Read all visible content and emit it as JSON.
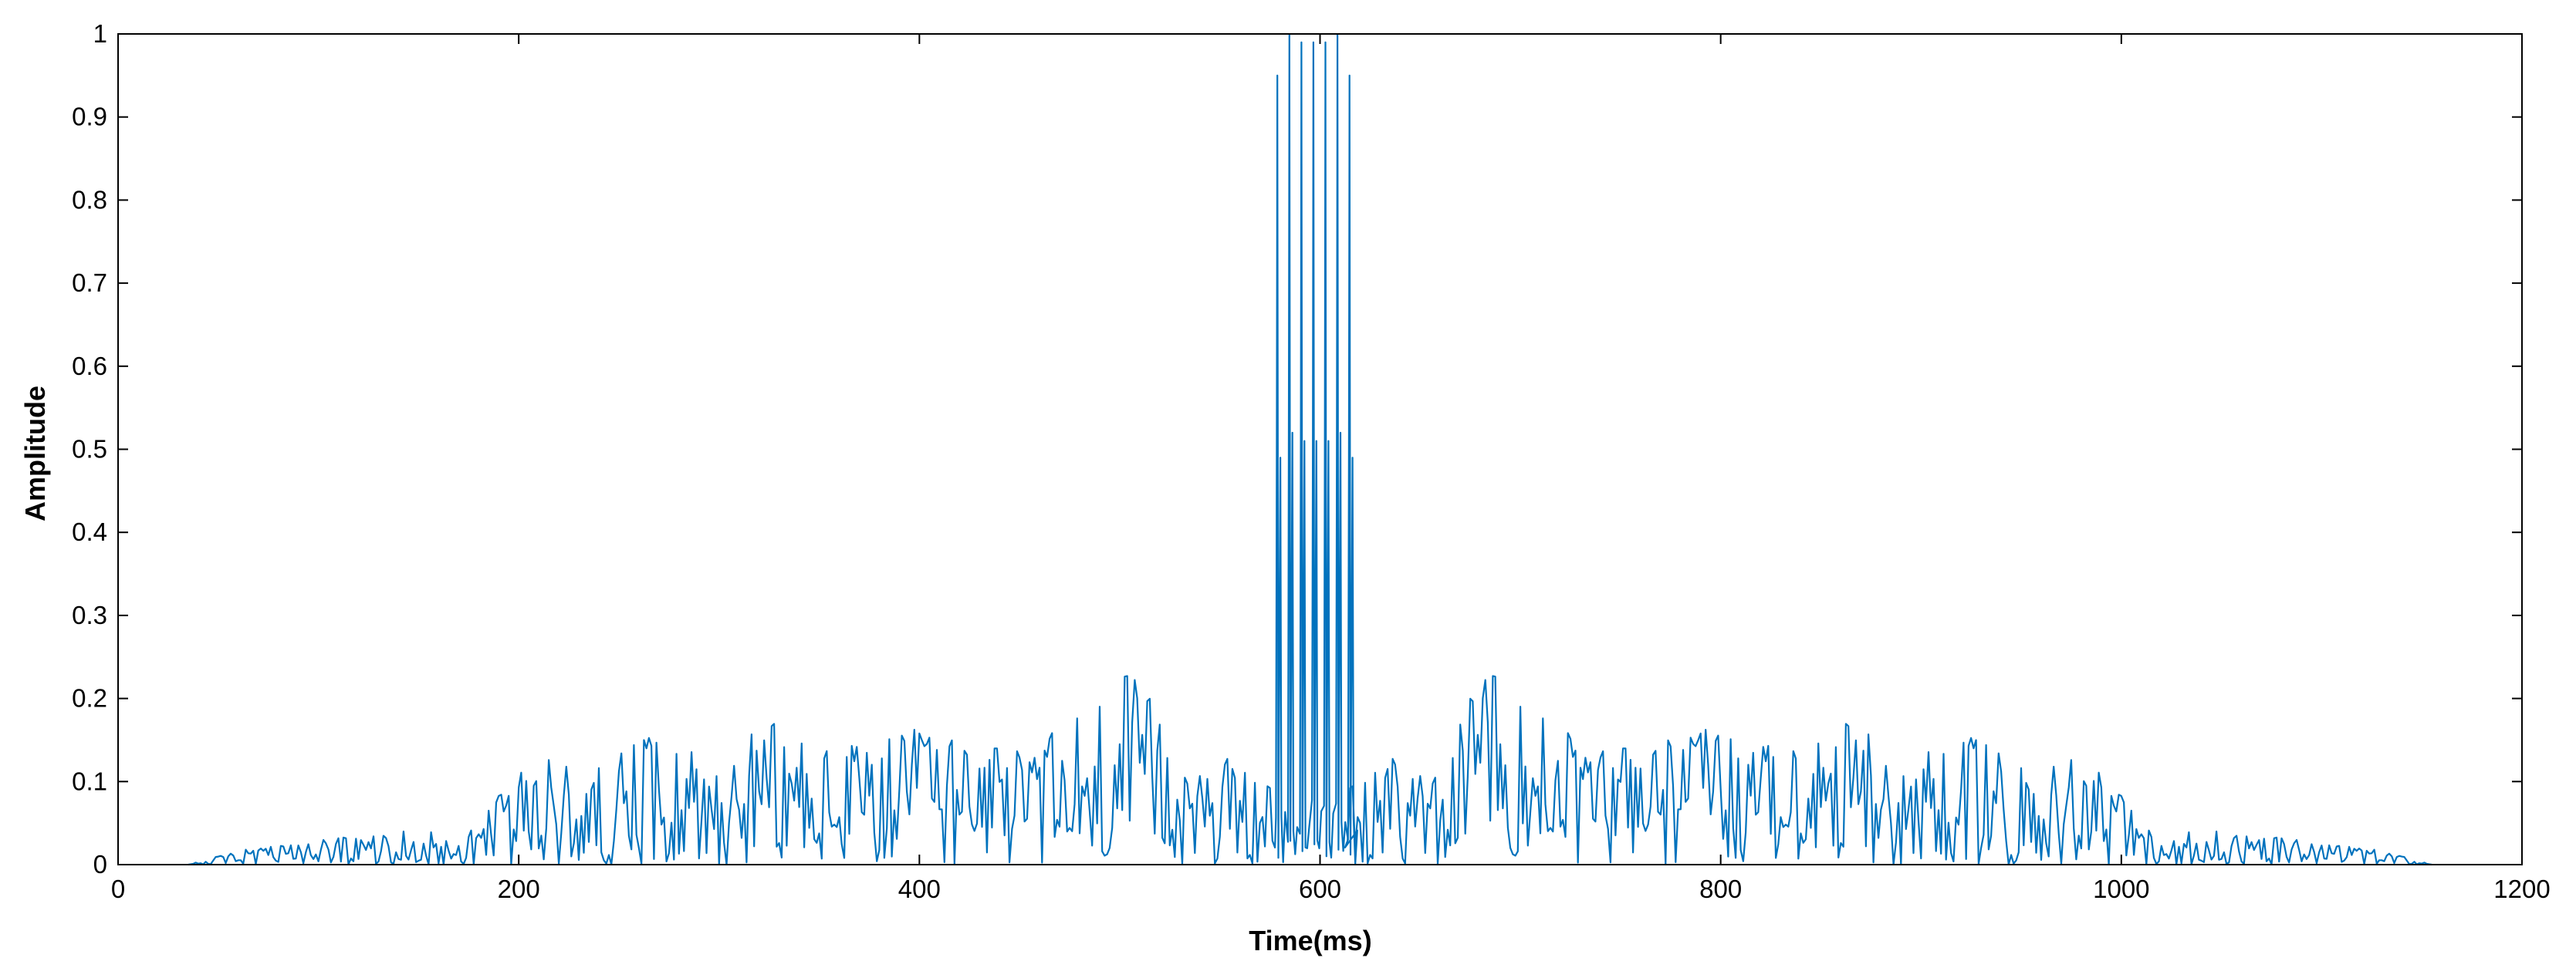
{
  "chart_data": {
    "type": "line",
    "title": "",
    "xlabel": "Time(ms)",
    "ylabel": "Amplitude",
    "xlim": [
      0,
      1200
    ],
    "ylim": [
      0,
      1
    ],
    "xticks": [
      0,
      200,
      400,
      600,
      800,
      1000,
      1200
    ],
    "yticks": [
      0,
      0.1,
      0.2,
      0.3,
      0.4,
      0.5,
      0.6,
      0.7,
      0.8,
      0.9,
      1
    ],
    "xtick_labels": [
      "0",
      "200",
      "400",
      "600",
      "800",
      "1000",
      "1200"
    ],
    "ytick_labels": [
      "0",
      "0.1",
      "0.2",
      "0.3",
      "0.4",
      "0.5",
      "0.6",
      "0.7",
      "0.8",
      "0.9",
      "1"
    ],
    "grid": false,
    "legend": "none",
    "series_color": "#0072BD",
    "description": "dense oscillating amplitude signal, approximately symmetric about 595 ms",
    "envelope": {
      "x": [
        35,
        60,
        100,
        140,
        175,
        190,
        210,
        240,
        260,
        300,
        330,
        360,
        400,
        430,
        460,
        480,
        500,
        515,
        530,
        560,
        578
      ],
      "y": [
        0.0,
        0.018,
        0.03,
        0.04,
        0.04,
        0.09,
        0.13,
        0.12,
        0.17,
        0.14,
        0.175,
        0.14,
        0.165,
        0.14,
        0.15,
        0.18,
        0.25,
        0.2,
        0.12,
        0.13,
        0.1
      ]
    },
    "center_peaks": {
      "x": [
        579,
        585,
        591,
        597,
        603,
        609,
        615
      ],
      "y": [
        0.95,
        1.0,
        0.99,
        0.99,
        0.99,
        1.0,
        0.95
      ],
      "secondary_y": [
        0.49,
        0.52,
        0.51,
        0.51,
        0.51,
        0.52,
        0.49
      ]
    },
    "symmetry_center": 595,
    "sample_step": 1.25
  }
}
